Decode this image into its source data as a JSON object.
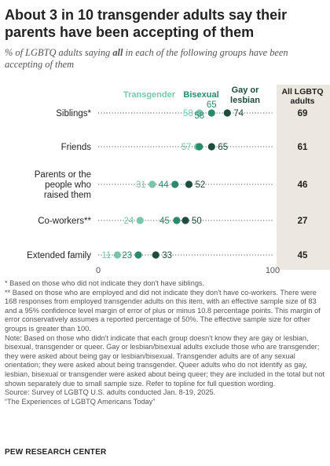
{
  "title": "About 3 in 10 transgender adults say their parents have been accepting of them",
  "subtitle_prefix": "% of LGBTQ adults saying ",
  "subtitle_bold": "all",
  "subtitle_suffix": " in each of the following groups have been accepting of them",
  "legend": [
    {
      "key": "transgender",
      "lines": [
        "Transgender"
      ],
      "color": "#79c6ac"
    },
    {
      "key": "bisexual",
      "lines": [
        "Bisexual"
      ],
      "color": "#2c8a6c"
    },
    {
      "key": "gay_lesbian",
      "lines": [
        "Gay or",
        "lesbian"
      ],
      "color": "#1e4c3e"
    }
  ],
  "total_column_header": [
    "All LGBTQ",
    "adults"
  ],
  "chart_data": {
    "type": "dot",
    "categories": [
      [
        "Siblings*"
      ],
      [
        "Friends"
      ],
      [
        "Parents or the",
        "people who",
        "raised them"
      ],
      [
        "Co-workers**"
      ],
      [
        "Extended family"
      ]
    ],
    "series": [
      {
        "name": "Transgender",
        "color": "#79c6ac",
        "values": [
          58,
          57,
          31,
          24,
          11
        ]
      },
      {
        "name": "Bisexual",
        "color": "#2c8a6c",
        "values": [
          65,
          58,
          44,
          45,
          23
        ]
      },
      {
        "name": "Gay or lesbian",
        "color": "#1e4c3e",
        "values": [
          74,
          65,
          52,
          50,
          33
        ]
      }
    ],
    "totals": {
      "name": "All LGBTQ adults",
      "values": [
        69,
        61,
        46,
        27,
        45
      ]
    },
    "xlim": [
      0,
      100
    ],
    "axis_labels": [
      "0",
      "100"
    ]
  },
  "notes": [
    "* Based on those who did not indicate they don't have siblings.",
    "** Based on those who are employed and did not indicate they don't have co-workers. There were 168 responses from employed transgender adults on this item, with an effective sample size of 83 and a 95% confidence level margin of error of plus or minus 10.8 percentage points. This margin of error conservatively assumes a reported percentage of 50%. The effective sample size for other groups is greater than 100.",
    "Note: Based on those who didn't indicate that each group doesn't know they are gay or lesbian, bisexual, transgender or queer. Gay or lesbian/bisexual adults exclude those who are transgender; they were asked about being gay or lesbian/bisexual. Transgender adults are of any sexual orientation; they were asked about being transgender. Queer adults who do not identify as gay, lesbian, bisexual or transgender were asked about being queer; they are included in the total but not shown separately due to small sample size. Refer to topline for full question wording.",
    "Source: Survey of LGBTQ U.S. adults conducted Jan. 8-19, 2025.",
    "“The Experiences of LGBTQ Americans Today”"
  ],
  "footer": "PEW RESEARCH CENTER",
  "colors": {
    "text": "#222222",
    "muted": "#555555",
    "total_column_bg": "#ece8df",
    "dotted_line": "#777777"
  }
}
